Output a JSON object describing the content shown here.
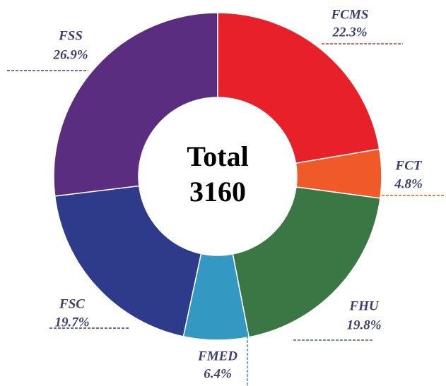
{
  "chart_data": {
    "type": "donut",
    "center_title": "Total",
    "total": 3160,
    "categories": [
      "FCMS",
      "FCT",
      "FHU",
      "FMED",
      "FSC",
      "FSS"
    ],
    "values": [
      22.3,
      4.8,
      19.8,
      6.4,
      19.7,
      26.9
    ],
    "value_labels": [
      "22.3%",
      "4.8%",
      "19.8%",
      "6.4%",
      "19.7%",
      "26.9%"
    ],
    "colors": [
      "#e8202a",
      "#ef5a28",
      "#3a7744",
      "#3399c2",
      "#2e3a8a",
      "#5a2d80"
    ]
  }
}
